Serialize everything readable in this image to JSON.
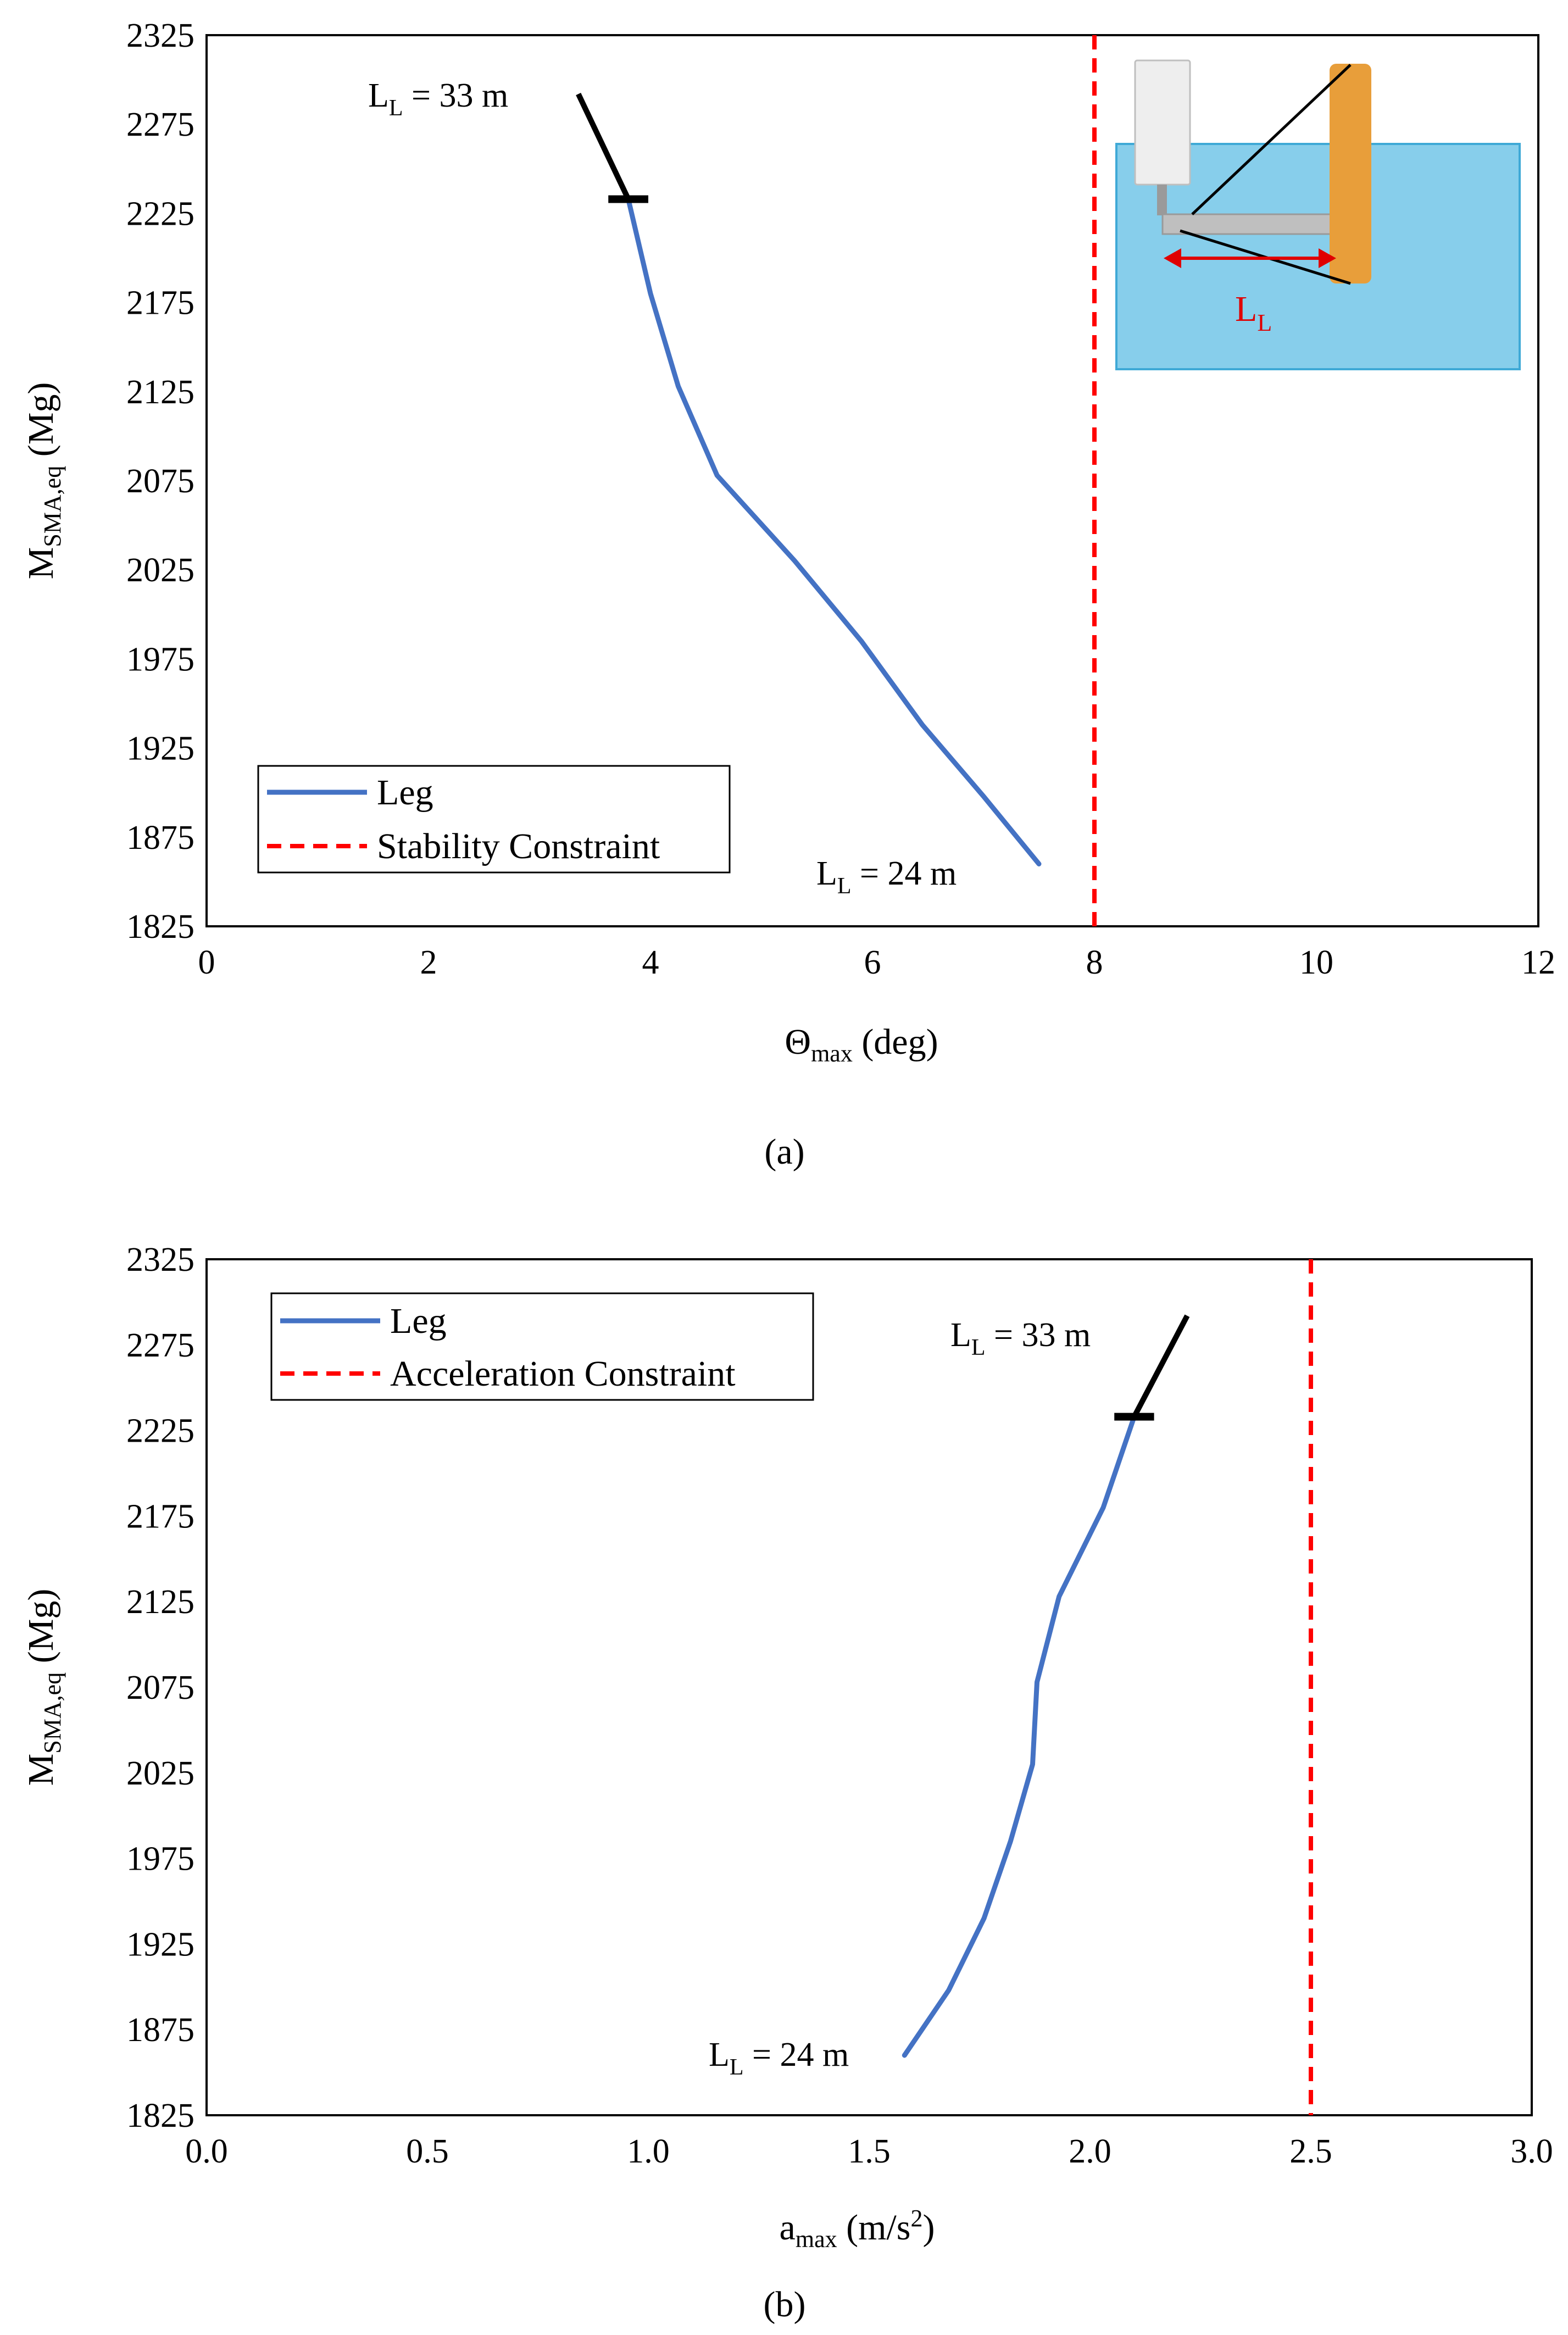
{
  "colors": {
    "leg_line": "#4472C4",
    "constraint_line": "#FF0000",
    "marker_line": "#000000",
    "water": "#87CEEB",
    "water_edge": "#3FA9D6",
    "leg_pillar": "#E89E3A",
    "platform_gray": "#BFBFBF",
    "tower_white": "#EEEEEE",
    "inset_label": "#E00000"
  },
  "chart_data": [
    {
      "id": "a",
      "type": "line",
      "caption": "(a)",
      "xlabel": {
        "main": "Θ",
        "sub": "max",
        "rest": " (deg)"
      },
      "ylabel": {
        "main": "M",
        "sub": "SMA,eq",
        "rest": " (Mg)"
      },
      "xlim": [
        0,
        12
      ],
      "ylim": [
        1825,
        2325
      ],
      "xticks": [
        "0",
        "2",
        "4",
        "6",
        "8",
        "10",
        "12"
      ],
      "yticks": [
        "1825",
        "1875",
        "1925",
        "1975",
        "2025",
        "2075",
        "2125",
        "2175",
        "2225",
        "2275",
        "2325"
      ],
      "series": [
        {
          "name": "Leg",
          "x": [
            3.8,
            4.0,
            4.25,
            4.6,
            5.3,
            5.9,
            6.45,
            7.0,
            7.5
          ],
          "y": [
            2233,
            2180,
            2128,
            2078,
            2030,
            1985,
            1938,
            1898,
            1860
          ]
        }
      ],
      "constraint": {
        "name": "Stability Constraint",
        "x": 8
      },
      "marker_line": {
        "x": [
          3.35,
          3.8
        ],
        "y": [
          2292,
          2233
        ],
        "tick_halfwidth": 0.18
      },
      "annotations": [
        {
          "main": "L",
          "sub": "L",
          "rest": " = 33 m"
        },
        {
          "main": "L",
          "sub": "L",
          "rest": " = 24 m"
        }
      ],
      "legend": {
        "position": "bottom-left"
      },
      "inset": {
        "label_main": "L",
        "label_sub": "L"
      }
    },
    {
      "id": "b",
      "type": "line",
      "caption": "(b)",
      "xlabel": {
        "main": "a",
        "sub": "max",
        "rest": " (m/s",
        "sup": "2",
        "close": ")"
      },
      "ylabel": {
        "main": "M",
        "sub": "SMA,eq",
        "rest": " (Mg)"
      },
      "xlim": [
        0,
        3
      ],
      "ylim": [
        1825,
        2325
      ],
      "xticks": [
        "0.0",
        "0.5",
        "1.0",
        "1.5",
        "2.0",
        "2.5",
        "3.0"
      ],
      "yticks": [
        "1825",
        "1875",
        "1925",
        "1975",
        "2025",
        "2075",
        "2125",
        "2175",
        "2225",
        "2275",
        "2325"
      ],
      "series": [
        {
          "name": "Leg",
          "x": [
            1.58,
            1.68,
            1.76,
            1.82,
            1.87,
            1.88,
            1.93,
            2.03,
            2.1
          ],
          "y": [
            1860,
            1898,
            1940,
            1985,
            2030,
            2078,
            2128,
            2180,
            2233
          ]
        }
      ],
      "constraint": {
        "name": "Acceleration Constraint",
        "x": 2.5
      },
      "marker_line": {
        "x": [
          2.1,
          2.22
        ],
        "y": [
          2233,
          2292
        ],
        "tick_halfwidth": 0.045
      },
      "annotations": [
        {
          "main": "L",
          "sub": "L",
          "rest": " = 33 m"
        },
        {
          "main": "L",
          "sub": "L",
          "rest": " = 24 m"
        }
      ],
      "legend": {
        "position": "top-left"
      }
    }
  ]
}
